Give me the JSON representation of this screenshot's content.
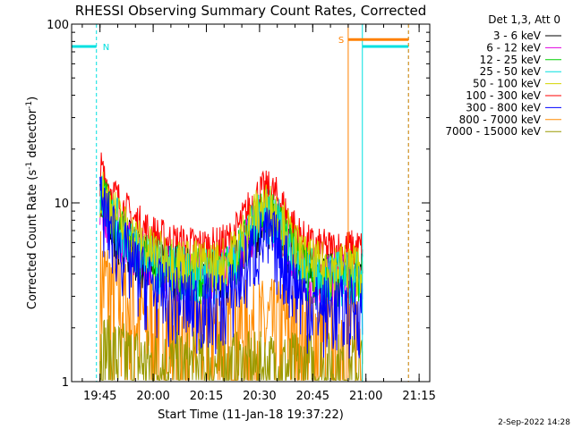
{
  "chart_data": {
    "type": "line",
    "title": "RHESSI Observing Summary Count Rates, Corrected",
    "xlabel": "Start Time (11-Jan-18 19:37:22)",
    "ylabel_main": "Corrected Count Rate (s",
    "ylabel_sup1": "-1",
    "ylabel_mid": " detector",
    "ylabel_sup2": "-1",
    "ylabel_end": ")",
    "y_scale": "log",
    "ylim": [
      1,
      100
    ],
    "y_ticks": [
      {
        "value": 1,
        "label": "1"
      },
      {
        "value": 10,
        "label": "10"
      },
      {
        "value": 100,
        "label": "100"
      }
    ],
    "x_range": [
      "19:37",
      "21:18"
    ],
    "x_ticks": [
      {
        "time": "19:45",
        "label": "19:45"
      },
      {
        "time": "20:00",
        "label": "20:00"
      },
      {
        "time": "20:15",
        "label": "20:15"
      },
      {
        "time": "20:30",
        "label": "20:30"
      },
      {
        "time": "20:45",
        "label": "20:45"
      },
      {
        "time": "21:00",
        "label": "21:00"
      },
      {
        "time": "21:15",
        "label": "21:15"
      }
    ],
    "legend_title": "Det 1,3, Att 0",
    "legend_placement": "right",
    "series": [
      {
        "name": "3 - 6 keV",
        "color": "#000000",
        "base": 10.2,
        "flare": 4.0,
        "noise": 0.35,
        "floor": 4
      },
      {
        "name": "6 - 12 keV",
        "color": "#e000e0",
        "base": 10.8,
        "flare": 4.3,
        "noise": 0.35,
        "floor": 4
      },
      {
        "name": "12 - 25 keV",
        "color": "#00d000",
        "base": 11.4,
        "flare": 4.6,
        "noise": 0.35,
        "floor": 4
      },
      {
        "name": "25 - 50 keV",
        "color": "#00e0e0",
        "base": 12.0,
        "flare": 4.9,
        "noise": 0.35,
        "floor": 4
      },
      {
        "name": "50 - 100 keV",
        "color": "#d4d400",
        "base": 12.5,
        "flare": 5.2,
        "noise": 0.35,
        "floor": 4.5
      },
      {
        "name": "100 - 300 keV",
        "color": "#ff0000",
        "base": 15.5,
        "flare": 6.2,
        "noise": 0.3,
        "floor": 5.5
      },
      {
        "name": "300 - 800 keV",
        "color": "#0000ff",
        "base": 10.0,
        "flare": 3.8,
        "noise": 0.5,
        "floor": 2.6
      },
      {
        "name": "800 - 7000 keV",
        "color": "#ff8c00",
        "base": 4.0,
        "flare": 0.0,
        "noise": 0.9,
        "floor": 2.0
      },
      {
        "name": "7000 - 15000 keV",
        "color": "#9a9a00",
        "base": 1.6,
        "flare": 0.0,
        "noise": 0.6,
        "floor": 1.2
      }
    ],
    "data_interval": [
      "19:45",
      "20:59"
    ],
    "flare_peak": "20:32",
    "annotations": {
      "night_label": "N",
      "night_color": "#00e0e0",
      "night_intervals": [
        [
          "19:37",
          "19:44"
        ],
        [
          "20:59",
          "21:12"
        ]
      ],
      "saa_label": "S",
      "saa_color": "#ff8000",
      "saa_interval": [
        "20:55",
        "21:12"
      ]
    }
  },
  "footer": {
    "date_label": "2-Sep-2022 14:28"
  }
}
